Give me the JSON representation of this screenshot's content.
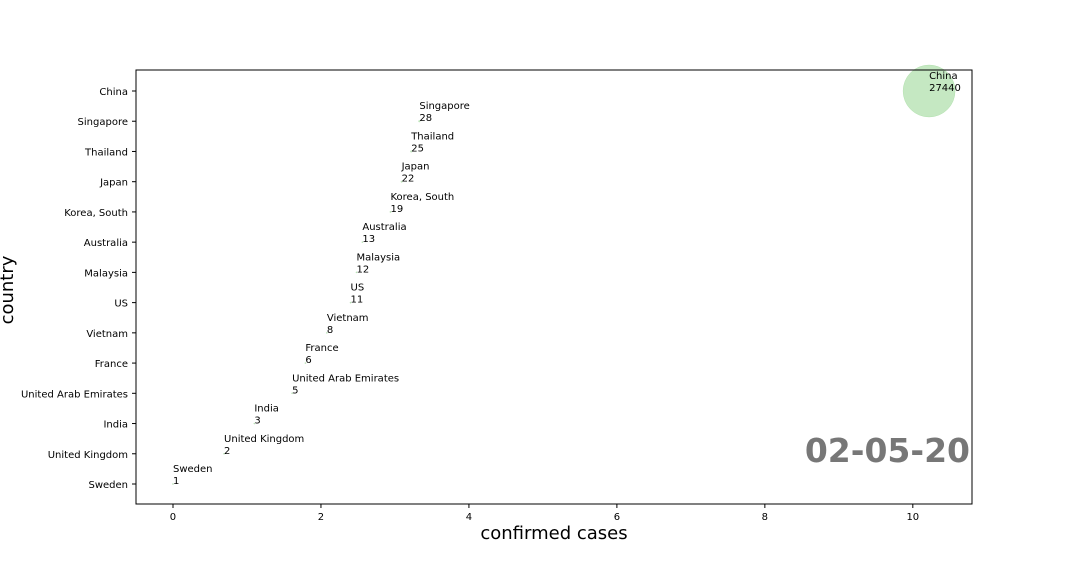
{
  "chart_data": {
    "type": "scatter",
    "title": "",
    "xlabel": "confirmed cases",
    "ylabel": "country",
    "date_label": "02-05-20",
    "xlim": [
      -0.5,
      10.8
    ],
    "xticks": [
      0,
      2,
      4,
      6,
      8,
      10
    ],
    "grid": false,
    "colors": {
      "bubble": "#9fd89a",
      "date": "#777777",
      "axis": "#000000"
    },
    "countries": [
      "China",
      "Singapore",
      "Thailand",
      "Japan",
      "Korea, South",
      "Australia",
      "Malaysia",
      "US",
      "Vietnam",
      "France",
      "United Arab Emirates",
      "India",
      "United Kingdom",
      "Sweden"
    ],
    "points": [
      {
        "country": "China",
        "x": 10.22,
        "cases": "27440"
      },
      {
        "country": "Singapore",
        "x": 3.33,
        "cases": "28"
      },
      {
        "country": "Thailand",
        "x": 3.22,
        "cases": "25"
      },
      {
        "country": "Japan",
        "x": 3.09,
        "cases": "22"
      },
      {
        "country": "Korea, South",
        "x": 2.94,
        "cases": "19"
      },
      {
        "country": "Australia",
        "x": 2.56,
        "cases": "13"
      },
      {
        "country": "Malaysia",
        "x": 2.48,
        "cases": "12"
      },
      {
        "country": "US",
        "x": 2.4,
        "cases": "11"
      },
      {
        "country": "Vietnam",
        "x": 2.08,
        "cases": "8"
      },
      {
        "country": "France",
        "x": 1.79,
        "cases": "6"
      },
      {
        "country": "United Arab Emirates",
        "x": 1.61,
        "cases": "5"
      },
      {
        "country": "India",
        "x": 1.1,
        "cases": "3"
      },
      {
        "country": "United Kingdom",
        "x": 0.69,
        "cases": "2"
      },
      {
        "country": "Sweden",
        "x": 0.0,
        "cases": "1"
      }
    ]
  }
}
